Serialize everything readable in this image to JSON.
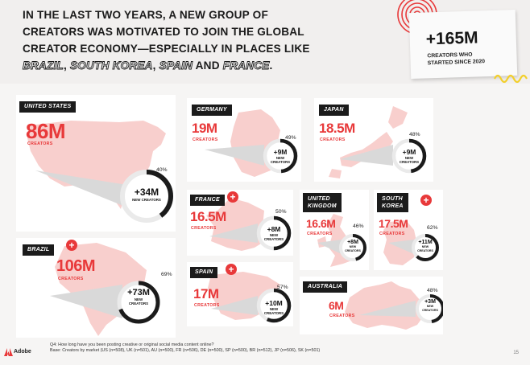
{
  "headline": {
    "line1": "IN THE LAST TWO YEARS, A NEW GROUP OF",
    "line2": "CREATORS WAS MOTIVATED TO JOIN THE GLOBAL",
    "line3": "CREATOR ECONOMY—ESPECIALLY IN PLACES LIKE",
    "brazil": "BRAZIL",
    "comma1": ", ",
    "south_korea": "SOUTH KOREA",
    "comma2": ", ",
    "spain": "SPAIN",
    "and": " AND ",
    "france": "FRANCE",
    "period": "."
  },
  "note": {
    "value": "+165M",
    "label_line1": "CREATORS WHO",
    "label_line2": "STARTED SINCE 2020"
  },
  "colors": {
    "accent": "#e8393a",
    "map": "#f8cfcd",
    "dark": "#1b1b1b"
  },
  "countries": {
    "us": {
      "name": "UNITED STATES",
      "total": "86M",
      "creators": "CREATORS",
      "new": "+34M",
      "new_label": "NEW CREATORS",
      "pct": "40%",
      "share": 0.4
    },
    "germany": {
      "name": "GERMANY",
      "total": "19M",
      "creators": "CREATORS",
      "new": "+9M",
      "new_label1": "NEW",
      "new_label2": "CREATORS",
      "pct": "49%",
      "share": 0.49
    },
    "japan": {
      "name": "JAPAN",
      "total": "18.5M",
      "creators": "CREATORS",
      "new": "+9M",
      "new_label1": "NEW",
      "new_label2": "CREATORS",
      "pct": "48%",
      "share": 0.48
    },
    "france": {
      "name": "FRANCE",
      "total": "16.5M",
      "creators": "CREATORS",
      "new": "+8M",
      "new_label1": "NEW",
      "new_label2": "CREATORS",
      "pct": "50%",
      "share": 0.5
    },
    "uk": {
      "name1": "UNITED",
      "name2": "KINGDOM",
      "total": "16.6M",
      "creators": "CREATORS",
      "new": "+8M",
      "new_label1": "NEW",
      "new_label2": "CREATORS",
      "pct": "46%",
      "share": 0.46
    },
    "south_korea": {
      "name1": "SOUTH",
      "name2": "KOREA",
      "total": "17.5M",
      "creators": "CREATORS",
      "new": "+11M",
      "new_label1": "NEW",
      "new_label2": "CREATORS",
      "pct": "62%",
      "share": 0.62
    },
    "brazil": {
      "name": "BRAZIL",
      "total": "106M",
      "creators": "CREATORS",
      "new": "+73M",
      "new_label1": "NEW",
      "new_label2": "CREATORS",
      "pct": "69%",
      "share": 0.69
    },
    "spain": {
      "name": "SPAIN",
      "total": "17M",
      "creators": "CREATORS",
      "new": "+10M",
      "new_label1": "NEW",
      "new_label2": "CREATORS",
      "pct": "57%",
      "share": 0.57
    },
    "australia": {
      "name": "AUSTRALIA",
      "total": "6M",
      "creators": "CREATORS",
      "new": "+3M",
      "new_label1": "NEW",
      "new_label2": "CREATORS",
      "pct": "48%",
      "share": 0.48
    }
  },
  "plus_badge": "+",
  "footer": {
    "line1": "Q4: How long have you been posting creative or original social media content online?",
    "line2": "Base: Creators by market (US (n=508), UK (n=501), AU (n=500), FR (n=506), DE (n=500), SP (n=500), BR (n=512), JP (n=506), SK (n=501)"
  },
  "brand": "Adobe",
  "page_number": "15"
}
